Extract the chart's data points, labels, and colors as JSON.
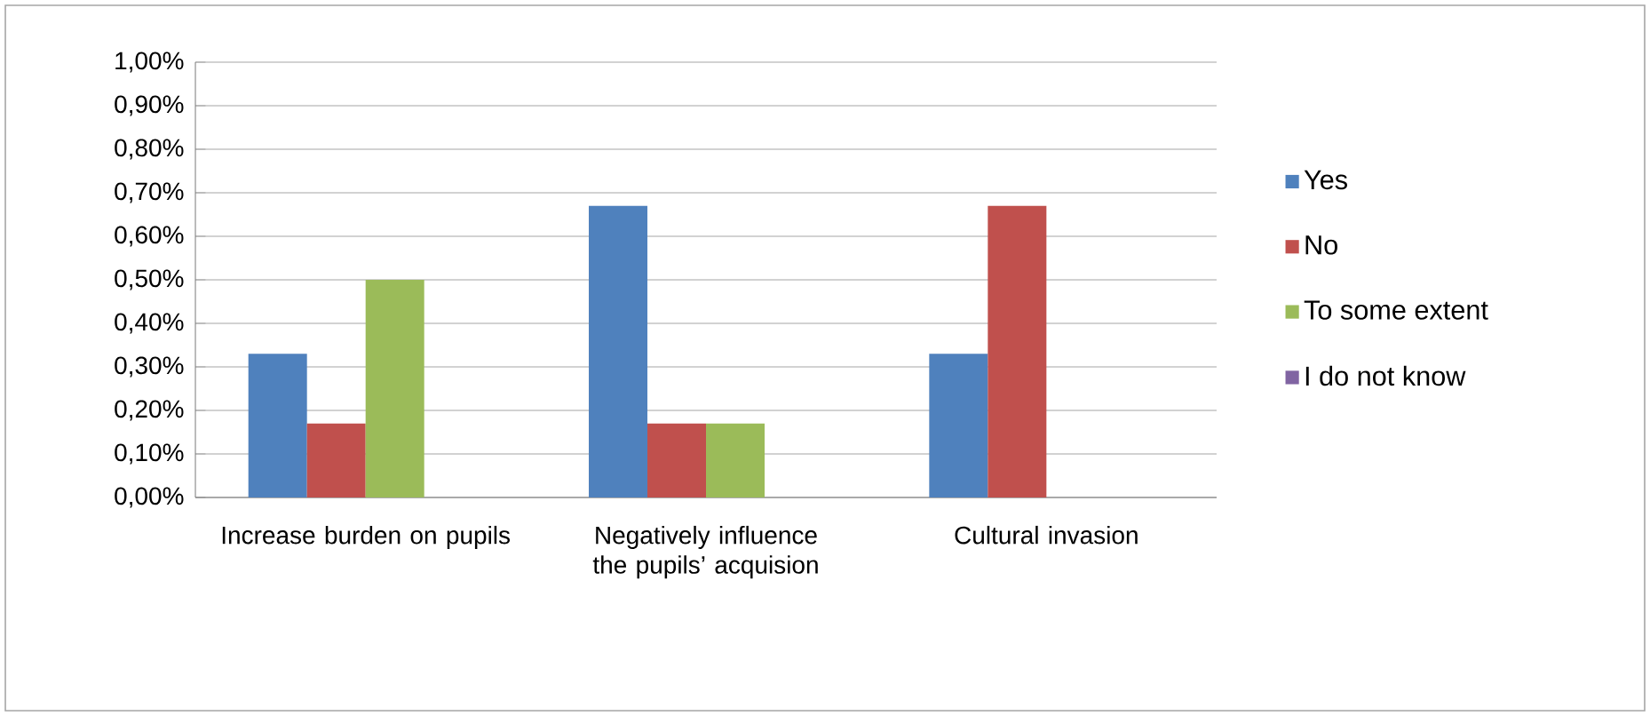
{
  "chart_data": {
    "type": "bar",
    "categories": [
      "Increase burden on pupils",
      "Negatively influence the pupils’ acquision",
      "Cultural invasion"
    ],
    "series": [
      {
        "name": "Yes",
        "color": "#4f81bd",
        "values": [
          0.33,
          0.67,
          0.33
        ]
      },
      {
        "name": "No",
        "color": "#c0504d",
        "values": [
          0.17,
          0.17,
          0.67
        ]
      },
      {
        "name": "To some extent",
        "color": "#9bbb59",
        "values": [
          0.5,
          0.17,
          0
        ]
      },
      {
        "name": "I do not know",
        "color": "#8064a2",
        "values": [
          0,
          0,
          0
        ]
      }
    ],
    "ylim": [
      0,
      1
    ],
    "yticks": [
      {
        "value": 0,
        "label": "0,00%"
      },
      {
        "value": 0.1,
        "label": "0,10%"
      },
      {
        "value": 0.2,
        "label": "0,20%"
      },
      {
        "value": 0.3,
        "label": "0,30%"
      },
      {
        "value": 0.4,
        "label": "0,40%"
      },
      {
        "value": 0.5,
        "label": "0,50%"
      },
      {
        "value": 0.6,
        "label": "0,60%"
      },
      {
        "value": 0.7,
        "label": "0,70%"
      },
      {
        "value": 0.8,
        "label": "0,80%"
      },
      {
        "value": 0.9,
        "label": "0,90%"
      },
      {
        "value": 1,
        "label": "1,00%"
      }
    ],
    "grid": "y",
    "legend": "right"
  }
}
